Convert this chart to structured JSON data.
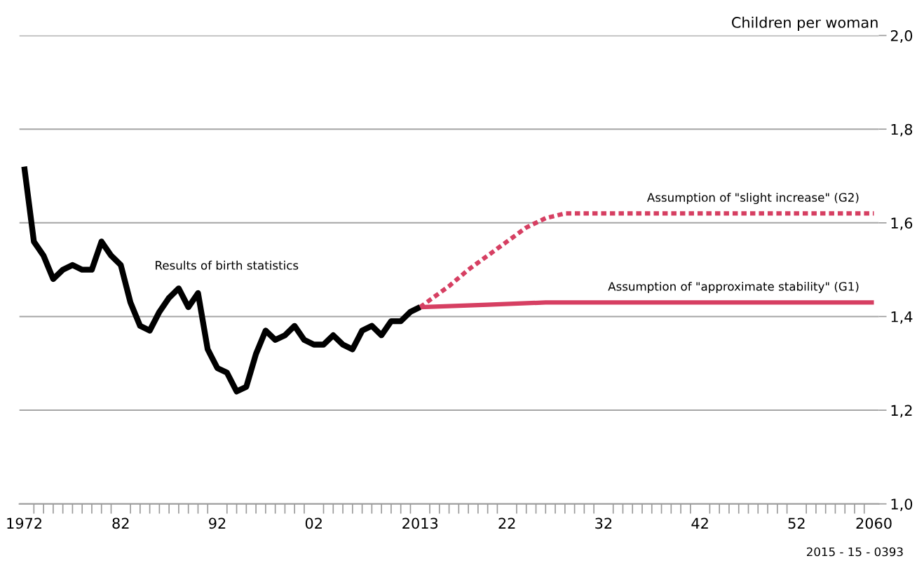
{
  "chart_data": {
    "type": "line",
    "ylabel": "Children per woman",
    "xlim": [
      1971.5,
      2060.5
    ],
    "ylim": [
      1.0,
      2.0
    ],
    "xticks": [
      {
        "value": 1972,
        "label": "1972"
      },
      {
        "value": 1982,
        "label": "82"
      },
      {
        "value": 1992,
        "label": "92"
      },
      {
        "value": 2002,
        "label": "02"
      },
      {
        "value": 2013,
        "label": "2013"
      },
      {
        "value": 2022,
        "label": "22"
      },
      {
        "value": 2032,
        "label": "32"
      },
      {
        "value": 2042,
        "label": "42"
      },
      {
        "value": 2052,
        "label": "52"
      },
      {
        "value": 2060,
        "label": "2060"
      }
    ],
    "yticks": [
      {
        "value": 1.0,
        "label": "1,0"
      },
      {
        "value": 1.2,
        "label": "1,2"
      },
      {
        "value": 1.4,
        "label": "1,4"
      },
      {
        "value": 1.6,
        "label": "1,6"
      },
      {
        "value": 1.8,
        "label": "1,8"
      },
      {
        "value": 2.0,
        "label": "2,0"
      }
    ],
    "grid": "y",
    "legend": false,
    "marker": "none",
    "series": [
      {
        "name": "Results of birth statistics",
        "color": "#000000",
        "line_style": "solid",
        "x": [
          1972,
          1973,
          1974,
          1975,
          1976,
          1977,
          1978,
          1979,
          1980,
          1981,
          1982,
          1983,
          1984,
          1985,
          1986,
          1987,
          1988,
          1989,
          1990,
          1991,
          1992,
          1993,
          1994,
          1995,
          1996,
          1997,
          1998,
          1999,
          2000,
          2001,
          2002,
          2003,
          2004,
          2005,
          2006,
          2007,
          2008,
          2009,
          2010,
          2011,
          2012,
          2013
        ],
        "values": [
          1.72,
          1.56,
          1.53,
          1.48,
          1.5,
          1.51,
          1.5,
          1.5,
          1.56,
          1.53,
          1.51,
          1.43,
          1.38,
          1.37,
          1.41,
          1.44,
          1.46,
          1.42,
          1.45,
          1.33,
          1.29,
          1.28,
          1.24,
          1.25,
          1.32,
          1.37,
          1.35,
          1.36,
          1.38,
          1.35,
          1.34,
          1.34,
          1.36,
          1.34,
          1.33,
          1.37,
          1.38,
          1.36,
          1.39,
          1.39,
          1.41,
          1.42
        ]
      },
      {
        "name": "Assumption of \"slight increase\" (G2)",
        "color": "#d63f62",
        "line_style": "dashed",
        "x": [
          2013,
          2014,
          2016,
          2018,
          2020,
          2022,
          2024,
          2026,
          2028,
          2060
        ],
        "values": [
          1.42,
          1.435,
          1.465,
          1.5,
          1.53,
          1.56,
          1.59,
          1.61,
          1.62,
          1.62
        ]
      },
      {
        "name": "Assumption of \"approximate stability\" (G1)",
        "color": "#d63f62",
        "line_style": "solid",
        "x": [
          2013,
          2020,
          2026,
          2060
        ],
        "values": [
          1.42,
          1.425,
          1.43,
          1.43
        ]
      }
    ],
    "annotations": [
      "2015 - 15 - 0393"
    ]
  }
}
